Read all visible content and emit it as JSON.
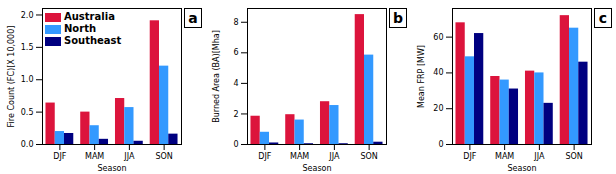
{
  "chart_data": [
    {
      "type": "bar",
      "title": "a",
      "xlabel": "Season",
      "ylabel": "Fire Count (FC)[X 10,000]",
      "categories": [
        "DJF",
        "MAM",
        "JJA",
        "SON"
      ],
      "series": [
        {
          "name": "Australia",
          "color": "#dc143c",
          "values": [
            0.64,
            0.5,
            0.71,
            1.91
          ]
        },
        {
          "name": "North",
          "color": "#3399ff",
          "values": [
            0.2,
            0.29,
            0.57,
            1.21
          ]
        },
        {
          "name": "Southeast",
          "color": "#000080",
          "values": [
            0.17,
            0.08,
            0.05,
            0.16
          ]
        }
      ],
      "ylim": [
        0,
        2.1
      ],
      "yticks": [
        {
          "value": 0,
          "label": "0.0"
        },
        0.5,
        {
          "value": 1,
          "label": "1.0"
        },
        1.5,
        {
          "value": 2,
          "label": "2.0"
        }
      ],
      "legend": "upper left"
    },
    {
      "type": "bar",
      "title": "b",
      "xlabel": "Season",
      "ylabel": "Burned Area (BA)[Mha]",
      "categories": [
        "DJF",
        "MAM",
        "JJA",
        "SON"
      ],
      "series": [
        {
          "name": "Australia",
          "color": "#dc143c",
          "values": [
            1.85,
            1.95,
            2.8,
            8.5
          ]
        },
        {
          "name": "North",
          "color": "#3399ff",
          "values": [
            0.8,
            1.6,
            2.55,
            5.85
          ]
        },
        {
          "name": "Southeast",
          "color": "#000080",
          "values": [
            0.1,
            0.05,
            0.05,
            0.15
          ]
        }
      ],
      "ylim": [
        0,
        8.9
      ],
      "yticks": [
        0,
        2,
        4,
        6,
        8
      ]
    },
    {
      "type": "bar",
      "title": "c",
      "xlabel": "Season",
      "ylabel": "Mean FRP [MW]",
      "categories": [
        "DJF",
        "MAM",
        "JJA",
        "SON"
      ],
      "series": [
        {
          "name": "Australia",
          "color": "#dc143c",
          "values": [
            68,
            38,
            41,
            72
          ]
        },
        {
          "name": "North",
          "color": "#3399ff",
          "values": [
            49,
            36,
            40,
            65
          ]
        },
        {
          "name": "Southeast",
          "color": "#000080",
          "values": [
            62,
            31,
            23,
            46
          ]
        }
      ],
      "ylim": [
        0,
        76
      ],
      "yticks": [
        0,
        20,
        40,
        60
      ]
    }
  ]
}
